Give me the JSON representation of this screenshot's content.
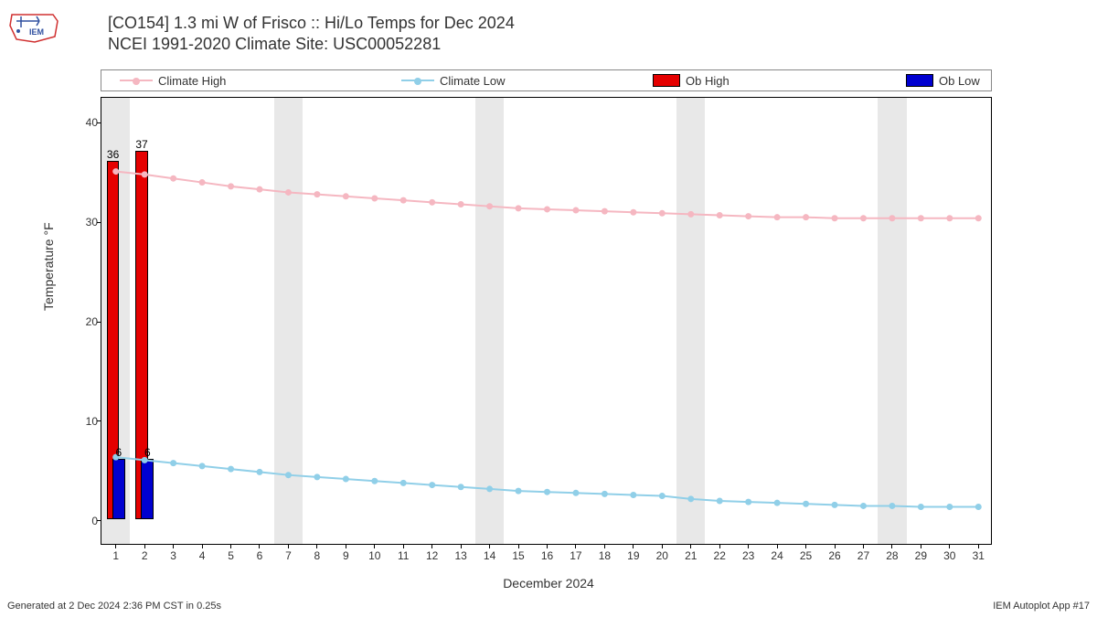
{
  "title_line1": "[CO154] 1.3 mi W of Frisco :: Hi/Lo Temps for Dec 2024",
  "title_line2": "NCEI 1991-2020 Climate Site: USC00052281",
  "legend": {
    "climate_high": "Climate High",
    "climate_low": "Climate Low",
    "ob_high": "Ob High",
    "ob_low": "Ob Low"
  },
  "yaxis_label": "Temperature °F",
  "xaxis_label": "December 2024",
  "footer_left": "Generated at 2 Dec 2024 2:36 PM CST in 0.25s",
  "footer_right": "IEM Autoplot App #17",
  "colors": {
    "climate_high": "#f5b7c1",
    "climate_low": "#90cfe8",
    "ob_high": "#e50000",
    "ob_low": "#0000d0",
    "shade": "#e8e8e8",
    "border": "#000000",
    "bg": "#ffffff"
  },
  "chart": {
    "type": "line+bar",
    "ylim": [
      -2.5,
      42.5
    ],
    "yticks": [
      0,
      10,
      20,
      30,
      40
    ],
    "xlim": [
      0.5,
      31.5
    ],
    "days": [
      1,
      2,
      3,
      4,
      5,
      6,
      7,
      8,
      9,
      10,
      11,
      12,
      13,
      14,
      15,
      16,
      17,
      18,
      19,
      20,
      21,
      22,
      23,
      24,
      25,
      26,
      27,
      28,
      29,
      30,
      31
    ],
    "weekend_shade_start_days": [
      1,
      7,
      14,
      21,
      28
    ],
    "climate_high": [
      35.1,
      34.8,
      34.4,
      34.0,
      33.6,
      33.3,
      33.0,
      32.8,
      32.6,
      32.4,
      32.2,
      32.0,
      31.8,
      31.6,
      31.4,
      31.3,
      31.2,
      31.1,
      31.0,
      30.9,
      30.8,
      30.7,
      30.6,
      30.5,
      30.5,
      30.4,
      30.4,
      30.4,
      30.4,
      30.4,
      30.4
    ],
    "climate_low": [
      6.4,
      6.1,
      5.8,
      5.5,
      5.2,
      4.9,
      4.6,
      4.4,
      4.2,
      4.0,
      3.8,
      3.6,
      3.4,
      3.2,
      3.0,
      2.9,
      2.8,
      2.7,
      2.6,
      2.5,
      2.2,
      2.0,
      1.9,
      1.8,
      1.7,
      1.6,
      1.5,
      1.5,
      1.4,
      1.4,
      1.4
    ],
    "ob_high": [
      {
        "day": 1,
        "value": 36,
        "label": "36"
      },
      {
        "day": 2,
        "value": 37,
        "label": "37"
      }
    ],
    "ob_low": [
      {
        "day": 1,
        "value": 6,
        "label": "6"
      },
      {
        "day": 2,
        "value": 6,
        "label": "6"
      }
    ],
    "bar_half_width_days": 0.22,
    "marker_radius": 3.5,
    "line_width": 2
  }
}
